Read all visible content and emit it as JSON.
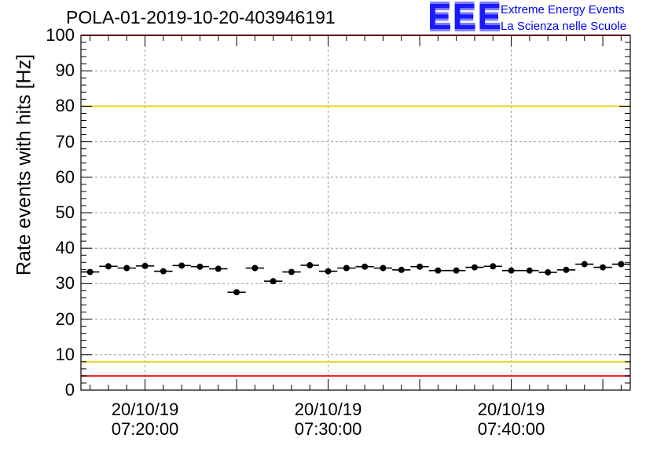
{
  "chart_data": {
    "type": "scatter",
    "title": "POLA-01-2019-10-20-403946191",
    "xlabel": "",
    "ylabel": "Rate events with hits [Hz]",
    "ylim": [
      0,
      100
    ],
    "xlim_minutes": [
      -3.5,
      26.5
    ],
    "x_unit": "minutes after 20/10/19 07:20:00",
    "bin_width_minutes": 1,
    "grid": true,
    "y_ticks": [
      "0",
      "10",
      "20",
      "30",
      "40",
      "50",
      "60",
      "70",
      "80",
      "90",
      "100"
    ],
    "x_ticks": [
      {
        "minutes": 0,
        "date": "20/10/19",
        "time": "07:20:00"
      },
      {
        "minutes": 10,
        "date": "20/10/19",
        "time": "07:30:00"
      },
      {
        "minutes": 20,
        "date": "20/10/19",
        "time": "07:40:00"
      }
    ],
    "reference_lines": [
      {
        "value": 100,
        "color": "#e8201c"
      },
      {
        "value": 80,
        "color": "#f0d020"
      },
      {
        "value": 8,
        "color": "#f0d020"
      },
      {
        "value": 4,
        "color": "#e8201c"
      }
    ],
    "series": [
      {
        "name": "rate",
        "color": "#000000",
        "x": [
          -3,
          -2,
          -1,
          0,
          1,
          2,
          3,
          4,
          5,
          6,
          7,
          8,
          9,
          10,
          11,
          12,
          13,
          14,
          15,
          16,
          17,
          18,
          19,
          20,
          21,
          22,
          23,
          24,
          25,
          26
        ],
        "y": [
          33.3,
          34.9,
          34.4,
          35.0,
          33.5,
          35.1,
          34.8,
          34.2,
          27.6,
          34.4,
          30.7,
          33.3,
          35.2,
          33.5,
          34.4,
          34.8,
          34.4,
          33.9,
          34.8,
          33.7,
          33.7,
          34.6,
          34.9,
          33.7,
          33.7,
          33.2,
          33.9,
          35.5,
          34.6,
          35.5
        ]
      }
    ]
  },
  "logo": {
    "mark": "EEE",
    "line1": "Extreme Energy Events",
    "line2": "La Scienza nelle Scuole"
  }
}
